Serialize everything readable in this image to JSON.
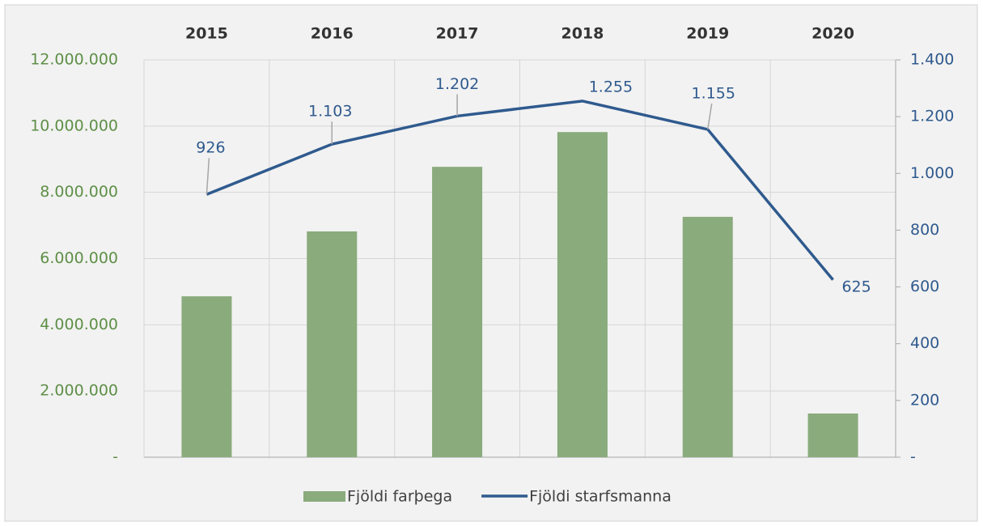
{
  "chart_data": {
    "type": "bar_line",
    "categories": [
      "2015",
      "2016",
      "2017",
      "2018",
      "2019",
      "2020"
    ],
    "series": [
      {
        "name": "Fjöldi farþega",
        "type": "bar",
        "color": "#8aab7c",
        "values": [
          4860000,
          6820000,
          8770000,
          9820000,
          7260000,
          1320000
        ]
      },
      {
        "name": "Fjöldi starfsmanna",
        "type": "line",
        "axis": "y2",
        "color": "#2f5a8e",
        "values": [
          926,
          1103,
          1202,
          1255,
          1155,
          625
        ],
        "value_labels": [
          "926",
          "1.103",
          "1.202",
          "1.255",
          "1.155",
          "625"
        ]
      }
    ],
    "ylim": [
      0,
      12000000
    ],
    "yticks": [
      {
        "value": 0,
        "label": "-"
      },
      {
        "value": 2000000,
        "label": "2.000.000"
      },
      {
        "value": 4000000,
        "label": "4.000.000"
      },
      {
        "value": 6000000,
        "label": "6.000.000"
      },
      {
        "value": 8000000,
        "label": "8.000.000"
      },
      {
        "value": 10000000,
        "label": "10.000.000"
      },
      {
        "value": 12000000,
        "label": "12.000.000"
      }
    ],
    "y2lim": [
      0,
      1400
    ],
    "y2ticks": [
      {
        "value": 0,
        "label": "-"
      },
      200,
      400,
      600,
      800,
      {
        "value": 1000,
        "label": "1.000"
      },
      {
        "value": 1200,
        "label": "1.200"
      },
      {
        "value": 1400,
        "label": "1.400"
      }
    ],
    "grid": true,
    "legend": "bottom"
  }
}
